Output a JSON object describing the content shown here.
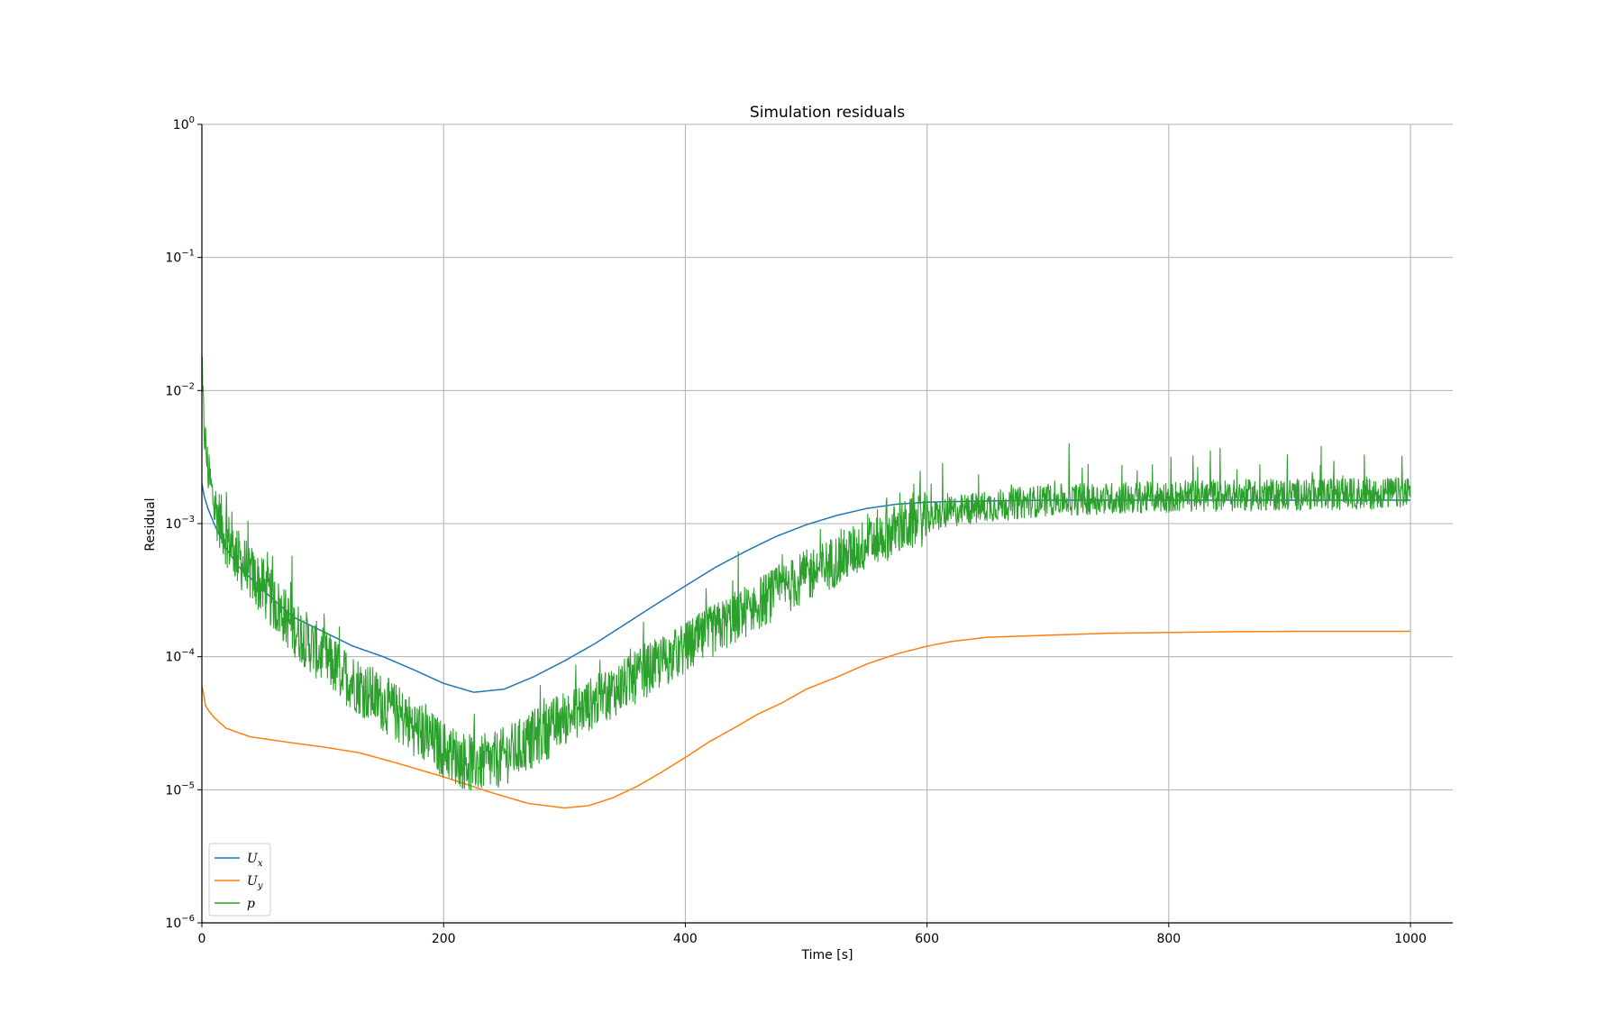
{
  "chart_data": {
    "type": "line",
    "title": "Simulation residuals",
    "xlabel": "Time [s]",
    "ylabel": "Residual",
    "xlim": [
      0,
      1035
    ],
    "ylim": [
      1e-06,
      1
    ],
    "yscale": "log",
    "grid": true,
    "legend_position": "bottom-left",
    "x_ticks": [
      {
        "value": 0,
        "label": "0"
      },
      {
        "value": 200,
        "label": "200"
      },
      {
        "value": 400,
        "label": "400"
      },
      {
        "value": 600,
        "label": "600"
      },
      {
        "value": 800,
        "label": "800"
      },
      {
        "value": 1000,
        "label": "1000"
      }
    ],
    "y_ticks": [
      {
        "value": 1,
        "base": "10",
        "exp": "0"
      },
      {
        "value": 0.1,
        "base": "10",
        "exp": "−1"
      },
      {
        "value": 0.01,
        "base": "10",
        "exp": "−2"
      },
      {
        "value": 0.001,
        "base": "10",
        "exp": "−3"
      },
      {
        "value": 0.0001,
        "base": "10",
        "exp": "−4"
      },
      {
        "value": 1e-05,
        "base": "10",
        "exp": "−5"
      },
      {
        "value": 1e-06,
        "base": "10",
        "exp": "−6"
      }
    ],
    "series": [
      {
        "name": "U_x",
        "label_main": "U",
        "label_sub": "x",
        "color": "#1f77b4",
        "x": [
          0,
          2,
          5,
          10,
          20,
          30,
          50,
          75,
          100,
          125,
          150,
          175,
          200,
          225,
          250,
          275,
          300,
          325,
          350,
          375,
          400,
          425,
          450,
          475,
          500,
          525,
          550,
          575,
          600,
          650,
          700,
          800,
          900,
          1000
        ],
        "y": [
          0.002,
          0.0016,
          0.0013,
          0.001,
          0.00065,
          0.00048,
          0.00032,
          0.0002,
          0.000155,
          0.00012,
          0.0001,
          8e-05,
          6.3e-05,
          5.4e-05,
          5.7e-05,
          7.1e-05,
          9.3e-05,
          0.000125,
          0.000175,
          0.000245,
          0.00034,
          0.00047,
          0.00062,
          0.0008,
          0.00098,
          0.00115,
          0.0013,
          0.0014,
          0.00145,
          0.00148,
          0.0015,
          0.0015,
          0.0015,
          0.0015
        ]
      },
      {
        "name": "U_y",
        "label_main": "U",
        "label_sub": "y",
        "color": "#ff7f0e",
        "x": [
          0,
          1,
          3,
          5,
          10,
          20,
          40,
          75,
          100,
          130,
          160,
          200,
          240,
          270,
          300,
          320,
          340,
          360,
          380,
          400,
          420,
          440,
          460,
          480,
          500,
          525,
          550,
          575,
          600,
          620,
          650,
          700,
          750,
          800,
          850,
          900,
          950,
          1000
        ],
        "y": [
          6e-05,
          5.5e-05,
          4.3e-05,
          4e-05,
          3.5e-05,
          2.9e-05,
          2.5e-05,
          2.25e-05,
          2.1e-05,
          1.9e-05,
          1.6e-05,
          1.25e-05,
          9.5e-06,
          7.9e-06,
          7.3e-06,
          7.6e-06,
          8.7e-06,
          1.06e-05,
          1.35e-05,
          1.75e-05,
          2.3e-05,
          2.9e-05,
          3.7e-05,
          4.5e-05,
          5.7e-05,
          7e-05,
          8.8e-05,
          0.000105,
          0.00012,
          0.00013,
          0.00014,
          0.000145,
          0.00015,
          0.000152,
          0.000154,
          0.000155,
          0.000155,
          0.000155
        ]
      },
      {
        "name": "p",
        "label_main": "p",
        "label_sub": "",
        "color": "#2ca02c",
        "x": [
          0,
          1,
          2,
          5,
          10,
          20,
          30,
          50,
          75,
          100,
          125,
          150,
          175,
          200,
          220,
          240,
          260,
          280,
          300,
          325,
          350,
          375,
          400,
          425,
          450,
          475,
          500,
          525,
          550,
          575,
          600,
          625,
          650,
          700,
          800,
          900,
          1000
        ],
        "y": [
          0.01,
          0.008,
          0.005,
          0.0025,
          0.0014,
          0.0008,
          0.00055,
          0.00033,
          0.00017,
          0.0001,
          6.5e-05,
          4.5e-05,
          3e-05,
          2e-05,
          1.6e-05,
          1.6e-05,
          2e-05,
          2.6e-05,
          3.4e-05,
          4.6e-05,
          6.2e-05,
          8.5e-05,
          0.000115,
          0.00016,
          0.00022,
          0.0003,
          0.0004,
          0.00053,
          0.0007,
          0.0009,
          0.0011,
          0.00125,
          0.00135,
          0.0015,
          0.0016,
          0.00165,
          0.0017
        ]
      }
    ]
  }
}
